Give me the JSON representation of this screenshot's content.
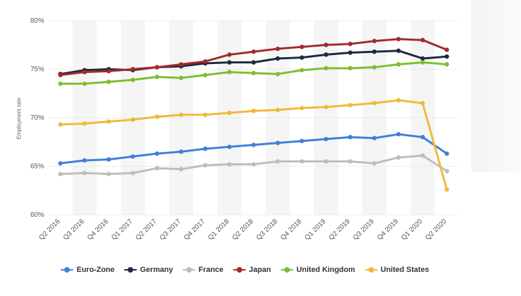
{
  "chart_data": {
    "type": "line",
    "ylabel": "Employment rate",
    "ylim": [
      60,
      80
    ],
    "yticks": [
      60,
      65,
      70,
      75,
      80
    ],
    "ytick_labels": [
      "60%",
      "65%",
      "70%",
      "75%",
      "80%"
    ],
    "categories": [
      "Q2 2016",
      "Q3 2016",
      "Q4 2016",
      "Q1 2017",
      "Q2 2017",
      "Q3 2017",
      "Q4 2017",
      "Q1 2018",
      "Q2 2018",
      "Q3 2018",
      "Q4 2018",
      "Q1 2019",
      "Q2 2019",
      "Q3 2019",
      "Q4 2019",
      "Q1 2020",
      "Q2 2020"
    ],
    "grid": true,
    "legend_position": "bottom",
    "series": [
      {
        "name": "Euro-Zone",
        "color": "#3f7fd9",
        "values": [
          65.3,
          65.6,
          65.7,
          66.0,
          66.3,
          66.5,
          66.8,
          67.0,
          67.2,
          67.4,
          67.6,
          67.8,
          68.0,
          67.9,
          68.3,
          68.0,
          66.3
        ]
      },
      {
        "name": "Germany",
        "color": "#1b2b3d",
        "values": [
          74.5,
          74.9,
          75.0,
          74.9,
          75.2,
          75.3,
          75.6,
          75.7,
          75.7,
          76.1,
          76.2,
          76.5,
          76.7,
          76.8,
          76.9,
          76.1,
          76.3
        ]
      },
      {
        "name": "France",
        "color": "#bdbdbd",
        "values": [
          64.2,
          64.3,
          64.2,
          64.3,
          64.8,
          64.7,
          65.1,
          65.2,
          65.2,
          65.5,
          65.5,
          65.5,
          65.5,
          65.3,
          65.9,
          66.1,
          64.5
        ]
      },
      {
        "name": "Japan",
        "color": "#a52a2a",
        "values": [
          74.4,
          74.7,
          74.8,
          75.0,
          75.2,
          75.5,
          75.8,
          76.5,
          76.8,
          77.1,
          77.3,
          77.5,
          77.6,
          77.9,
          78.1,
          78.0,
          77.0
        ]
      },
      {
        "name": "United Kingdom",
        "color": "#7cbf2e",
        "values": [
          73.5,
          73.5,
          73.7,
          73.9,
          74.2,
          74.1,
          74.4,
          74.7,
          74.6,
          74.5,
          74.9,
          75.1,
          75.1,
          75.2,
          75.5,
          75.7,
          75.5
        ]
      },
      {
        "name": "United States",
        "color": "#f0b93c",
        "values": [
          69.3,
          69.4,
          69.6,
          69.8,
          70.1,
          70.3,
          70.3,
          70.5,
          70.7,
          70.8,
          71.0,
          71.1,
          71.3,
          71.5,
          71.8,
          71.5,
          62.6
        ]
      }
    ]
  }
}
